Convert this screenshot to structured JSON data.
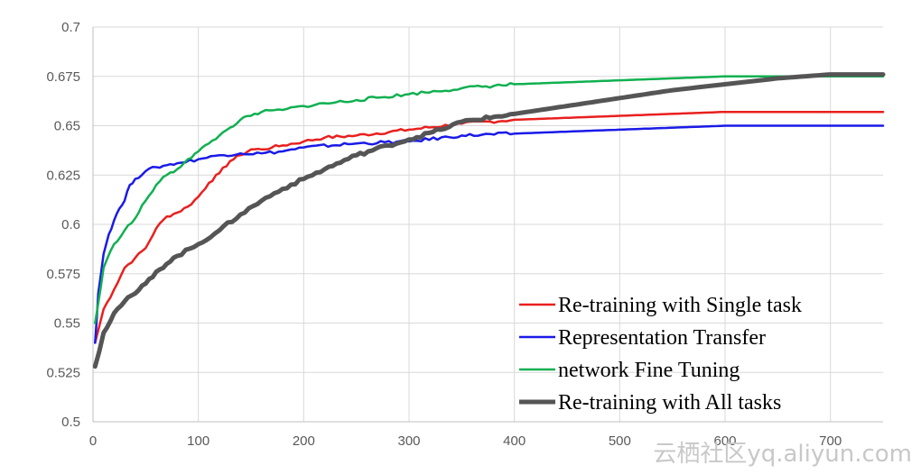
{
  "chart_data": {
    "type": "line",
    "title": "",
    "xlabel": "",
    "ylabel": "",
    "xlim": [
      0,
      750
    ],
    "ylim": [
      0.5,
      0.7
    ],
    "x_ticks": [
      "0",
      "100",
      "200",
      "300",
      "400",
      "500",
      "600",
      "700"
    ],
    "y_ticks": [
      "0.5",
      "0.525",
      "0.55",
      "0.575",
      "0.6",
      "0.625",
      "0.65",
      "0.675",
      "0.7"
    ],
    "grid": true,
    "legend_position": "bottom-right",
    "series": [
      {
        "name": "Re-training with Single task",
        "color": "#e8201e",
        "x": [
          2,
          10,
          20,
          30,
          40,
          50,
          60,
          70,
          80,
          90,
          100,
          110,
          120,
          130,
          140,
          150,
          160,
          170,
          180,
          200,
          220,
          250,
          300,
          350,
          400,
          500,
          600,
          700,
          750
        ],
        "values": [
          0.54,
          0.557,
          0.567,
          0.578,
          0.583,
          0.588,
          0.598,
          0.604,
          0.606,
          0.609,
          0.614,
          0.621,
          0.626,
          0.632,
          0.635,
          0.638,
          0.638,
          0.639,
          0.64,
          0.642,
          0.644,
          0.645,
          0.648,
          0.651,
          0.653,
          0.655,
          0.657,
          0.657,
          0.657
        ]
      },
      {
        "name": "Representation Transfer",
        "color": "#1a1ae8",
        "x": [
          2,
          5,
          10,
          15,
          20,
          25,
          30,
          35,
          40,
          50,
          60,
          70,
          80,
          100,
          120,
          140,
          160,
          180,
          200,
          250,
          300,
          350,
          400,
          500,
          600,
          700,
          750
        ],
        "values": [
          0.54,
          0.565,
          0.585,
          0.595,
          0.602,
          0.608,
          0.612,
          0.62,
          0.623,
          0.627,
          0.629,
          0.63,
          0.631,
          0.633,
          0.635,
          0.636,
          0.636,
          0.637,
          0.639,
          0.641,
          0.642,
          0.645,
          0.646,
          0.648,
          0.65,
          0.65,
          0.65
        ]
      },
      {
        "name": "network Fine Tuning",
        "color": "#10b050",
        "x": [
          2,
          5,
          10,
          20,
          30,
          40,
          50,
          60,
          70,
          80,
          90,
          100,
          110,
          120,
          130,
          140,
          150,
          160,
          180,
          200,
          250,
          300,
          350,
          400,
          500,
          600,
          700,
          750
        ],
        "values": [
          0.55,
          0.56,
          0.578,
          0.59,
          0.597,
          0.603,
          0.612,
          0.62,
          0.625,
          0.628,
          0.633,
          0.637,
          0.641,
          0.645,
          0.649,
          0.653,
          0.655,
          0.657,
          0.658,
          0.66,
          0.663,
          0.666,
          0.669,
          0.671,
          0.673,
          0.675,
          0.675,
          0.675
        ]
      },
      {
        "name": "Re-training with All tasks",
        "color": "#555555",
        "x": [
          2,
          10,
          20,
          30,
          40,
          50,
          60,
          70,
          80,
          100,
          120,
          140,
          160,
          180,
          200,
          220,
          250,
          280,
          300,
          330,
          350,
          400,
          450,
          500,
          550,
          600,
          650,
          700,
          750
        ],
        "values": [
          0.528,
          0.545,
          0.555,
          0.561,
          0.565,
          0.57,
          0.576,
          0.58,
          0.584,
          0.59,
          0.597,
          0.605,
          0.612,
          0.618,
          0.623,
          0.628,
          0.635,
          0.64,
          0.643,
          0.648,
          0.652,
          0.656,
          0.66,
          0.664,
          0.668,
          0.671,
          0.674,
          0.676,
          0.676
        ]
      }
    ]
  },
  "watermark": "云栖社区yq.aliyun.com"
}
